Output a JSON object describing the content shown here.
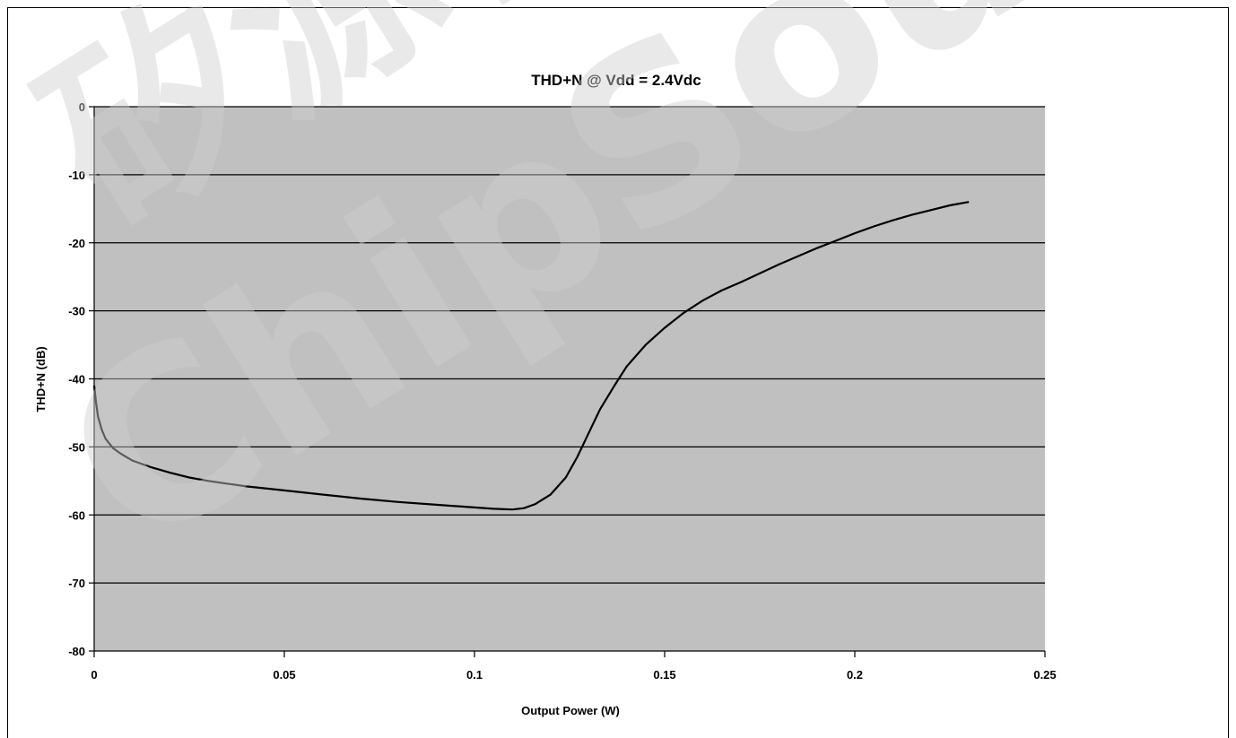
{
  "watermark": {
    "text_cn": "矽源特",
    "text_en": "ChipSource",
    "color": "#d0d0d0"
  },
  "chart_data": {
    "type": "line",
    "title": "THD+N @ Vdd = 2.4Vdc",
    "xlabel": "Output Power (W)",
    "ylabel": "THD+N (dB)",
    "xlim": [
      0,
      0.25
    ],
    "ylim": [
      -80,
      0
    ],
    "xticks": [
      0,
      0.05,
      0.1,
      0.15,
      0.2,
      0.25
    ],
    "xtick_labels": [
      "0",
      "0.05",
      "0.1",
      "0.15",
      "0.2",
      "0.25"
    ],
    "yticks": [
      0,
      -10,
      -20,
      -30,
      -40,
      -50,
      -60,
      -70,
      -80
    ],
    "ytick_labels": [
      "0",
      "-10",
      "-20",
      "-30",
      "-40",
      "-50",
      "-60",
      "-70",
      "-80"
    ],
    "grid": "horizontal",
    "plot_background": "#c0c0c0",
    "line_color": "#000000",
    "series": [
      {
        "points": [
          [
            0.0,
            -41
          ],
          [
            0.0005,
            -43.5
          ],
          [
            0.001,
            -45.5
          ],
          [
            0.002,
            -47.5
          ],
          [
            0.003,
            -48.8
          ],
          [
            0.005,
            -50.2
          ],
          [
            0.007,
            -51.0
          ],
          [
            0.01,
            -52.0
          ],
          [
            0.015,
            -53.0
          ],
          [
            0.02,
            -53.8
          ],
          [
            0.025,
            -54.5
          ],
          [
            0.03,
            -55.0
          ],
          [
            0.04,
            -55.8
          ],
          [
            0.05,
            -56.4
          ],
          [
            0.06,
            -57.0
          ],
          [
            0.07,
            -57.6
          ],
          [
            0.08,
            -58.1
          ],
          [
            0.09,
            -58.5
          ],
          [
            0.1,
            -58.9
          ],
          [
            0.105,
            -59.1
          ],
          [
            0.11,
            -59.2
          ],
          [
            0.113,
            -59.0
          ],
          [
            0.116,
            -58.4
          ],
          [
            0.12,
            -57.0
          ],
          [
            0.124,
            -54.5
          ],
          [
            0.127,
            -51.5
          ],
          [
            0.13,
            -48.0
          ],
          [
            0.133,
            -44.5
          ],
          [
            0.137,
            -40.8
          ],
          [
            0.14,
            -38.2
          ],
          [
            0.145,
            -35.0
          ],
          [
            0.15,
            -32.5
          ],
          [
            0.155,
            -30.3
          ],
          [
            0.16,
            -28.5
          ],
          [
            0.165,
            -27.0
          ],
          [
            0.17,
            -25.8
          ],
          [
            0.175,
            -24.5
          ],
          [
            0.18,
            -23.2
          ],
          [
            0.185,
            -22.0
          ],
          [
            0.19,
            -20.8
          ],
          [
            0.195,
            -19.7
          ],
          [
            0.2,
            -18.6
          ],
          [
            0.205,
            -17.6
          ],
          [
            0.21,
            -16.7
          ],
          [
            0.215,
            -15.9
          ],
          [
            0.22,
            -15.2
          ],
          [
            0.225,
            -14.5
          ],
          [
            0.23,
            -14.0
          ]
        ]
      }
    ]
  }
}
